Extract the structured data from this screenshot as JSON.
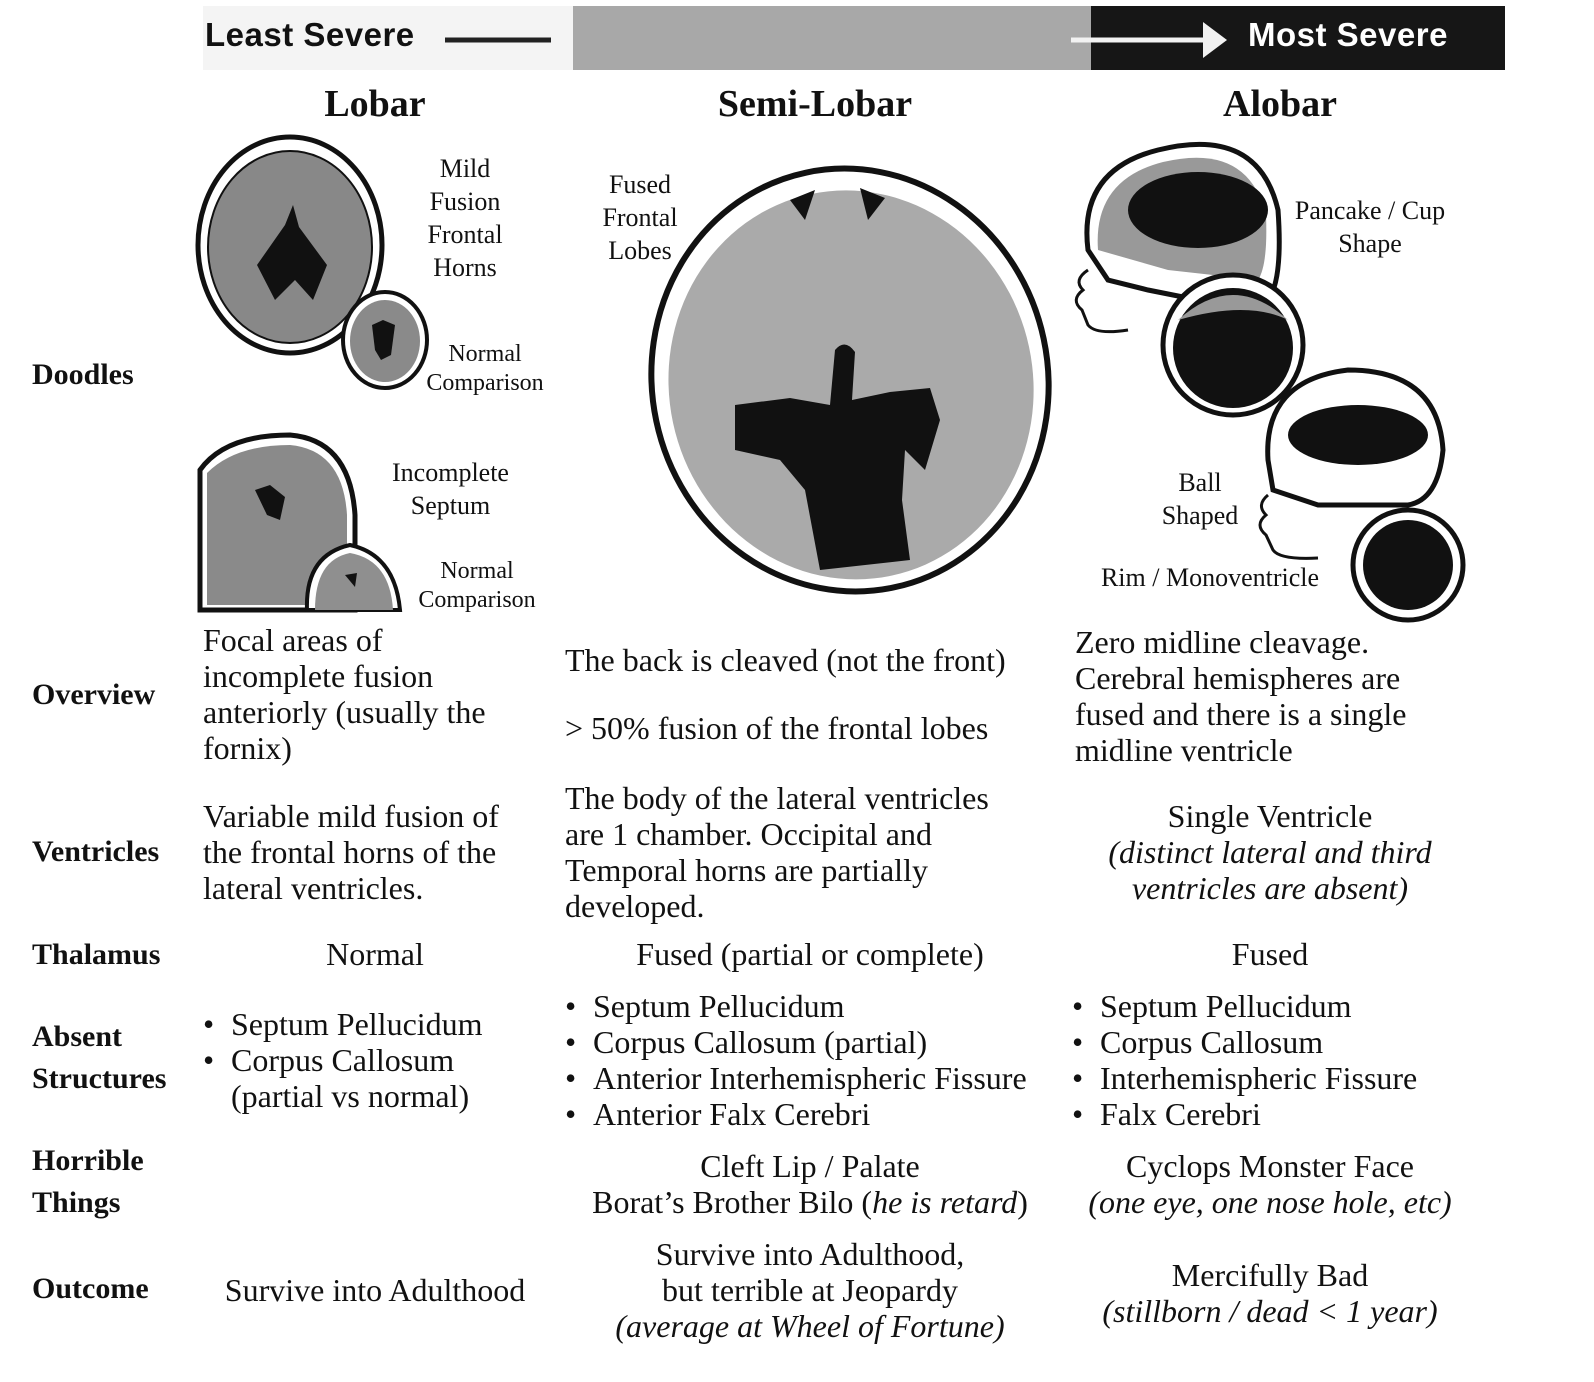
{
  "severity": {
    "least": "Least Severe",
    "most": "Most Severe"
  },
  "columns": {
    "lobar": "Lobar",
    "semi": "Semi-Lobar",
    "alobar": "Alobar"
  },
  "rows": {
    "doodles": "Doodles",
    "overview": "Overview",
    "ventricles": "Ventricles",
    "thalamus": "Thalamus",
    "absent": [
      "Absent",
      "Structures"
    ],
    "horrible": [
      "Horrible",
      "Things"
    ],
    "outcome": "Outcome"
  },
  "doodles": {
    "lobar_mild": [
      "Mild",
      "Fusion",
      "Frontal",
      "Horns"
    ],
    "lobar_normal1": [
      "Normal",
      "Comparison"
    ],
    "lobar_incomplete": [
      "Incomplete",
      "Septum"
    ],
    "lobar_normal2": [
      "Normal",
      "Comparison"
    ],
    "semi_fused": [
      "Fused",
      "Frontal",
      "Lobes"
    ],
    "alobar_pancake": [
      "Pancake / Cup",
      "Shape"
    ],
    "alobar_ball": [
      "Ball",
      "Shaped"
    ],
    "alobar_rim": "Rim / Monoventricle"
  },
  "overview": {
    "lobar": [
      "Focal areas of",
      "incomplete fusion",
      "anteriorly (usually the",
      "fornix)"
    ],
    "semi": [
      "The back is cleaved (not the front)",
      "> 50% fusion of the frontal lobes"
    ],
    "alobar": [
      "Zero midline cleavage.",
      "Cerebral hemispheres are",
      "fused and there is a single",
      "midline ventricle"
    ]
  },
  "ventricles": {
    "lobar": [
      "Variable mild fusion of",
      "the frontal horns of the",
      "lateral ventricles."
    ],
    "semi": [
      "The body of the lateral ventricles",
      "are 1 chamber. Occipital and",
      "Temporal horns are partially",
      "developed."
    ],
    "alobar": [
      "Single Ventricle",
      "(distinct lateral and third",
      "ventricles are absent)"
    ]
  },
  "thalamus": {
    "lobar": "Normal",
    "semi": "Fused  (partial or complete)",
    "alobar": "Fused"
  },
  "absent": {
    "lobar": [
      "Septum Pellucidum",
      "Corpus Callosum",
      "(partial vs normal)"
    ],
    "semi": [
      "Septum Pellucidum",
      "Corpus Callosum (partial)",
      "Anterior Interhemispheric Fissure",
      "Anterior Falx Cerebri"
    ],
    "alobar": [
      "Septum Pellucidum",
      "Corpus Callosum",
      "Interhemispheric Fissure",
      "Falx Cerebri"
    ]
  },
  "horrible": {
    "semi": [
      "Cleft Lip / Palate",
      "Borat’s Brother Bilo",
      "he is retard"
    ],
    "alobar": [
      "Cyclops Monster Face",
      "(one eye, one nose hole, etc)"
    ]
  },
  "outcome": {
    "lobar": "Survive into Adulthood",
    "semi": [
      "Survive into Adulthood,",
      "but terrible at Jeopardy",
      "(average at Wheel of Fortune)"
    ],
    "alobar": [
      "Mercifully Bad",
      "(stillborn / dead < 1 year)"
    ]
  }
}
